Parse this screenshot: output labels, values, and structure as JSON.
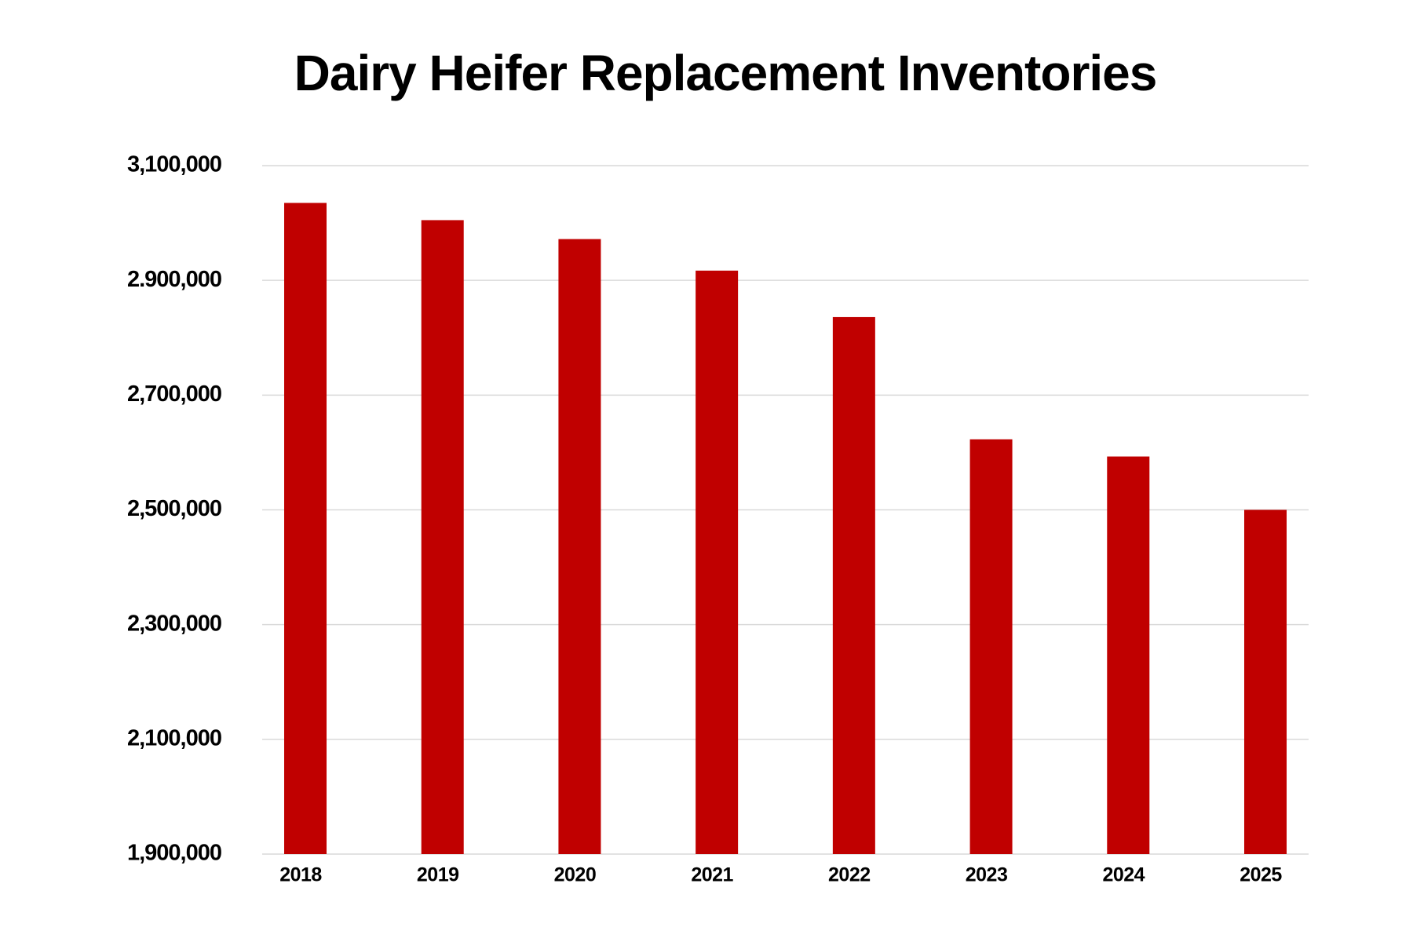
{
  "chart_data": {
    "type": "bar",
    "title": "Dairy Heifer Replacement Inventories",
    "categories": [
      "2018",
      "2019",
      "2020",
      "2021",
      "2022",
      "2023",
      "2024",
      "2025"
    ],
    "values": [
      3035000,
      3005000,
      2972000,
      2917000,
      2836000,
      2623000,
      2593000,
      2500000
    ],
    "color": "#c00000",
    "ylim": [
      1900000,
      3100000
    ],
    "yticks": [
      {
        "value": 1900000,
        "label": "1,900,000"
      },
      {
        "value": 2100000,
        "label": "2,100,000"
      },
      {
        "value": 2300000,
        "label": "2,300,000"
      },
      {
        "value": 2500000,
        "label": "2,500,000"
      },
      {
        "value": 2700000,
        "label": "2,700,000"
      },
      {
        "value": 2900000,
        "label": "2.900,000"
      },
      {
        "value": 3100000,
        "label": "3,100,000"
      }
    ],
    "grid": true
  }
}
